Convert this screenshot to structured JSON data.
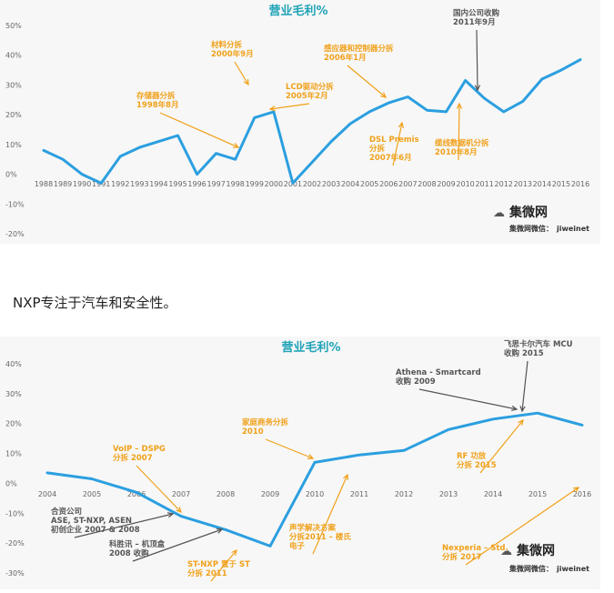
{
  "caption": "NXP专注于汽车和安全性。",
  "watermark": {
    "brand": "集微网",
    "sub_label": "集微网微信：",
    "sub_id": "jiweinet"
  },
  "colors": {
    "line": "#2b9fe0",
    "title": "#1fa3b7",
    "orange": "#f0a11a",
    "gray": "#555555"
  },
  "chart_data": [
    {
      "type": "line",
      "title": "营业毛利%",
      "x": [
        "1988",
        "1989",
        "1990",
        "1991",
        "1992",
        "1993",
        "1994",
        "1995",
        "1996",
        "1997",
        "1998",
        "1999",
        "2000",
        "2001",
        "2002",
        "2003",
        "2004",
        "2005",
        "2006",
        "2007",
        "2008",
        "2009",
        "2010",
        "2011",
        "2012",
        "2013",
        "2014",
        "2015",
        "2016"
      ],
      "values": [
        8,
        5,
        0,
        -3,
        6,
        9,
        11,
        13,
        0,
        7,
        5,
        19,
        21,
        -3,
        4,
        11,
        17,
        21,
        24,
        26,
        21.5,
        21,
        31.5,
        25.5,
        21,
        24.5,
        32,
        35,
        38.5
      ],
      "yticks": [
        "50%",
        "40%",
        "30%",
        "20%",
        "10%",
        "0%",
        "-10%",
        "-20%"
      ],
      "ylim": [
        -20,
        50
      ],
      "annotations": [
        {
          "lines": [
            "存储器分拆",
            "1998年8月"
          ],
          "color": "orange",
          "target_x": "1998"
        },
        {
          "lines": [
            "材料分拆",
            "2000年9月"
          ],
          "color": "orange",
          "target_x": "2000"
        },
        {
          "lines": [
            "LCD驱动分拆",
            "2005年2月"
          ],
          "color": "orange",
          "target_x": "2005"
        },
        {
          "lines": [
            "感应器和控制器分拆",
            "2006年1月"
          ],
          "color": "orange",
          "target_x": "2006"
        },
        {
          "lines": [
            "DSL Premis",
            "分拆",
            "2007年6月"
          ],
          "color": "orange",
          "target_x": "2007"
        },
        {
          "lines": [
            "缆线数据机分拆",
            "2010年8月"
          ],
          "color": "orange",
          "target_x": "2010"
        },
        {
          "lines": [
            "国内公司收购",
            "2011年9月"
          ],
          "color": "gray",
          "target_x": "2011"
        }
      ]
    },
    {
      "type": "line",
      "title": "营业毛利%",
      "x": [
        "2004",
        "2005",
        "2006",
        "2007",
        "2008",
        "2009",
        "2010",
        "2011",
        "2012",
        "2013",
        "2014",
        "2015",
        "2016"
      ],
      "values": [
        3.5,
        1.5,
        -3,
        -11,
        -15.5,
        -21,
        7,
        9.5,
        11,
        18,
        21.5,
        23.5,
        19.5
      ],
      "yticks": [
        "40%",
        "30%",
        "20%",
        "10%",
        "0%",
        "-10%",
        "-20%",
        "-30%"
      ],
      "ylim": [
        -30,
        40
      ],
      "annotations": [
        {
          "lines": [
            "VoIP – DSPG",
            "分拆 2007"
          ],
          "color": "orange",
          "target_x": "2007"
        },
        {
          "lines": [
            "合资公司",
            "ASE, ST-NXP, ASEN",
            "初创企业 2007 & 2008"
          ],
          "color": "gray",
          "target_x": "2007"
        },
        {
          "lines": [
            "科胜讯 – 机顶盒",
            "2008 收购"
          ],
          "color": "gray",
          "target_x": "2008"
        },
        {
          "lines": [
            "ST-NXP 置于 ST",
            "分拆  2011"
          ],
          "color": "orange",
          "target_x": "2009"
        },
        {
          "lines": [
            "家庭商务分拆",
            "2010"
          ],
          "color": "orange",
          "target_x": "2010"
        },
        {
          "lines": [
            "声学解决方案",
            "分拆2011 – 楼氏",
            "电子"
          ],
          "color": "orange",
          "target_x": "2011"
        },
        {
          "lines": [
            "Athena - Smartcard",
            "收购 2009"
          ],
          "color": "gray",
          "target_x": "2015"
        },
        {
          "lines": [
            "飞思卡尔汽车 MCU",
            "收购 2015"
          ],
          "color": "gray",
          "target_x": "2015"
        },
        {
          "lines": [
            "RF 功放",
            "分拆 2015"
          ],
          "color": "orange",
          "target_x": "2015"
        },
        {
          "lines": [
            "Nexperia – Std. ",
            "分拆 2017"
          ],
          "color": "orange",
          "target_x": "2016"
        }
      ]
    }
  ]
}
